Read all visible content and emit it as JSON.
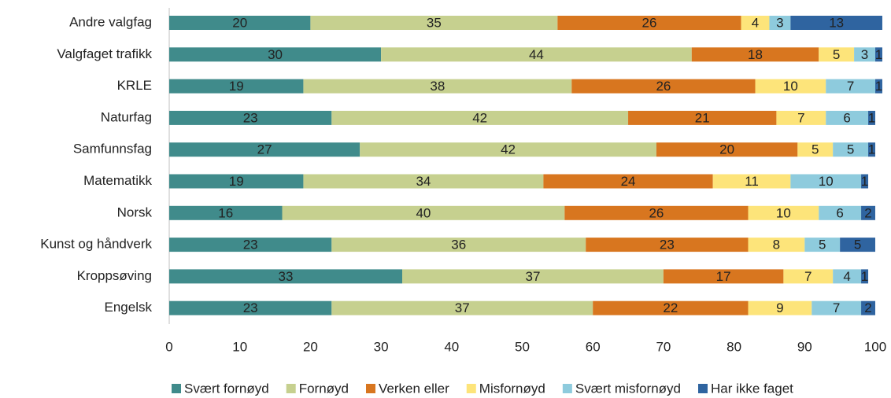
{
  "chart_data": {
    "type": "stacked-bar-horizontal",
    "categories": [
      "Andre valgfag",
      "Valgfaget trafikk",
      "KRLE",
      "Naturfag",
      "Samfunnsfag",
      "Matematikk",
      "Norsk",
      "Kunst og håndverk",
      "Kroppsøving",
      "Engelsk"
    ],
    "series": [
      {
        "name": "Svært fornøyd",
        "color": "#408b8b",
        "values": [
          20,
          30,
          19,
          23,
          27,
          19,
          16,
          23,
          33,
          23
        ]
      },
      {
        "name": "Fornøyd",
        "color": "#c6d08f",
        "values": [
          35,
          44,
          38,
          42,
          42,
          34,
          40,
          36,
          37,
          37
        ]
      },
      {
        "name": "Verken eller",
        "color": "#d8761f",
        "values": [
          26,
          18,
          26,
          21,
          20,
          24,
          26,
          23,
          17,
          22
        ]
      },
      {
        "name": "Misfornøyd",
        "color": "#fde47a",
        "values": [
          4,
          5,
          10,
          7,
          5,
          11,
          10,
          8,
          7,
          9
        ]
      },
      {
        "name": "Svært misfornøyd",
        "color": "#8ecbdd",
        "values": [
          3,
          3,
          7,
          6,
          5,
          10,
          6,
          5,
          4,
          7
        ]
      },
      {
        "name": "Har ikke faget",
        "color": "#2f64a0",
        "values": [
          13,
          1,
          1,
          1,
          1,
          1,
          2,
          5,
          1,
          2
        ]
      }
    ],
    "xlim": [
      0,
      100
    ],
    "xticks": [
      0,
      10,
      20,
      30,
      40,
      50,
      60,
      70,
      80,
      90,
      100
    ],
    "legend": "bottom"
  }
}
